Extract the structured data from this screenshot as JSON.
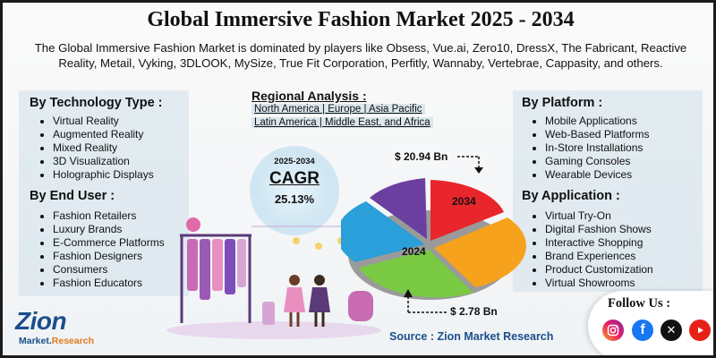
{
  "title": "Global Immersive Fashion Market 2025 - 2034",
  "subtitle": "The Global Immersive Fashion Market is dominated by players like Obsess, Vue.ai, Zero10, DressX, The Fabricant, Reactive Reality, Metail, Vyking, 3DLOOK, MySize, True Fit Corporation, Perfitly, Wannaby, Vertebrae, Cappasity, and others.",
  "technology": {
    "heading": "By Technology Type :",
    "items": [
      "Virtual Reality",
      "Augmented Reality",
      "Mixed Reality",
      "3D Visualization",
      "Holographic Displays"
    ]
  },
  "end_user": {
    "heading": "By End User :",
    "items": [
      "Fashion Retailers",
      "Luxury Brands",
      "E-Commerce Platforms",
      "Fashion Designers",
      "Consumers",
      "Fashion Educators"
    ]
  },
  "regional": {
    "heading": "Regional Analysis :",
    "line1": "North America | Europe | Asia Pacific",
    "line2": "Latin America | Middle East, and Africa"
  },
  "cagr": {
    "years": "2025-2034",
    "label": "CAGR",
    "value": "25.13%"
  },
  "market": {
    "value_2034": "$ 20.94 Bn",
    "value_2024": "$  2.78 Bn",
    "year_2034": "2034",
    "year_2024": "2024"
  },
  "platform": {
    "heading": "By Platform :",
    "items": [
      "Mobile Applications",
      "Web-Based Platforms",
      "In-Store Installations",
      "Gaming Consoles",
      "Wearable Devices"
    ]
  },
  "application": {
    "heading": "By Application :",
    "items": [
      "Virtual Try-On",
      "Digital Fashion Shows",
      "Interactive Shopping",
      "Brand Experiences",
      "Product Customization",
      "Virtual Showrooms"
    ]
  },
  "source": "Source : Zion Market Research",
  "follow": "Follow Us :",
  "logo": {
    "name": "Zion",
    "sub_a": "Market.",
    "sub_b": "Research"
  },
  "social_icons": [
    "instagram-icon",
    "facebook-icon",
    "x-icon",
    "youtube-icon"
  ],
  "colors": {
    "red": "#e8262b",
    "orange": "#f7a21c",
    "green": "#7ac943",
    "blue": "#2b9fd9",
    "purple": "#6a3fa0",
    "brand": "#1b4e8c"
  }
}
